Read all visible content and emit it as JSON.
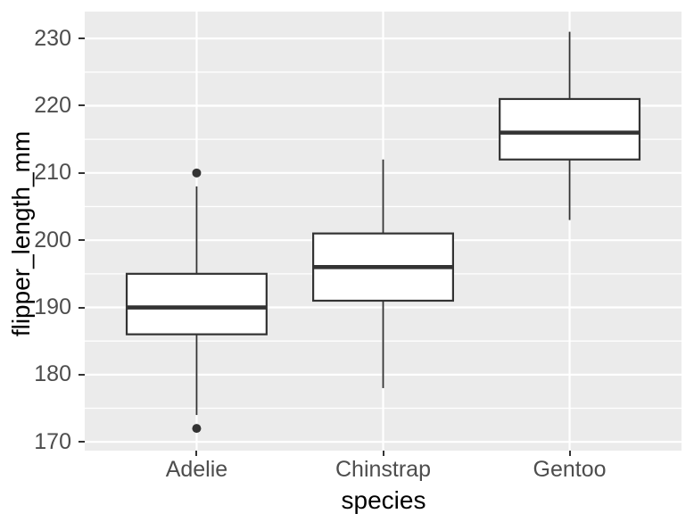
{
  "chart_data": {
    "type": "boxplot",
    "title": "",
    "xlabel": "species",
    "ylabel": "flipper_length_mm",
    "categories": [
      "Adelie",
      "Chinstrap",
      "Gentoo"
    ],
    "series": [
      {
        "name": "Adelie",
        "whisker_low": 174,
        "q1": 186,
        "median": 190,
        "q3": 195,
        "whisker_high": 208,
        "outliers": [
          172,
          210
        ]
      },
      {
        "name": "Chinstrap",
        "whisker_low": 178,
        "q1": 191,
        "median": 196,
        "q3": 201,
        "whisker_high": 212,
        "outliers": []
      },
      {
        "name": "Gentoo",
        "whisker_low": 203,
        "q1": 212,
        "median": 216,
        "q3": 221,
        "whisker_high": 231,
        "outliers": []
      }
    ],
    "ylim": [
      168.7,
      234.0
    ],
    "yticks_major": [
      170,
      180,
      190,
      200,
      210,
      220,
      230
    ],
    "yticks_minor": [
      175,
      185,
      195,
      205,
      215,
      225
    ],
    "grid": "on",
    "legend": "none",
    "colors": {
      "panel_background": "#EBEBEB",
      "grid_line": "#FFFFFF",
      "box_stroke": "#333333",
      "box_fill": "#FFFFFF",
      "outlier_fill": "#333333",
      "tick_text": "#4D4D4D",
      "axis_title_text": "#000000",
      "tick_mark": "#333333",
      "figure_background": "#FFFFFF"
    }
  }
}
